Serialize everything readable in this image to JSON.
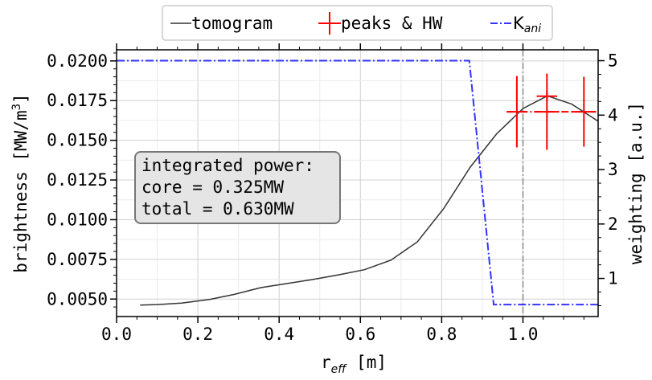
{
  "chart_data": {
    "type": "line",
    "xlabel": {
      "main": "r",
      "sub": "eff",
      "unit": "[m]"
    },
    "ylabel_left": {
      "main": "brightness [MW/m",
      "sup": "3",
      "end": "]"
    },
    "ylabel_right": "weighting [a.u.]",
    "xlim": [
      0.0,
      1.185
    ],
    "ylim_left": [
      0.0039,
      0.0207
    ],
    "ylim_right": [
      0.3,
      5.2
    ],
    "x_ticks": [
      "0.0",
      "0.2",
      "0.4",
      "0.6",
      "0.8",
      "1.0"
    ],
    "x_tick_values": [
      0.0,
      0.2,
      0.4,
      0.6,
      0.8,
      1.0
    ],
    "y_left_ticks": [
      "0.0050",
      "0.0075",
      "0.0100",
      "0.0125",
      "0.0150",
      "0.0175",
      "0.0200"
    ],
    "y_left_tick_values": [
      0.005,
      0.0075,
      0.01,
      0.0125,
      0.015,
      0.0175,
      0.02
    ],
    "y_right_ticks": [
      "1",
      "2",
      "3",
      "4",
      "5"
    ],
    "y_right_tick_values": [
      1,
      2,
      3,
      4,
      5
    ],
    "grid": true,
    "legend": {
      "placement": "top-center",
      "entries": [
        {
          "label": "tomogram",
          "style": "line",
          "color": "#333333"
        },
        {
          "label": "peaks & HW",
          "style": "errorbar",
          "color": "#ff0000"
        },
        {
          "label_main": "K",
          "label_sub": "ani",
          "style": "dashdot",
          "color": "#3333ff"
        }
      ]
    },
    "series": [
      {
        "name": "tomogram",
        "axis": "left",
        "color": "#333333",
        "x": [
          0.058,
          0.1,
          0.16,
          0.23,
          0.29,
          0.355,
          0.42,
          0.48,
          0.545,
          0.61,
          0.675,
          0.74,
          0.805,
          0.87,
          0.935,
          1.0,
          1.06,
          1.12,
          1.185
        ],
        "y": [
          0.00462,
          0.00465,
          0.00475,
          0.00498,
          0.0053,
          0.00572,
          0.00598,
          0.00622,
          0.00652,
          0.00685,
          0.00745,
          0.0086,
          0.0107,
          0.0133,
          0.0154,
          0.017,
          0.0178,
          0.01728,
          0.0162
        ]
      },
      {
        "name": "K_ani",
        "axis": "right",
        "color": "#3333ff",
        "x": [
          0.0,
          0.868,
          0.928,
          1.185
        ],
        "y": [
          5.0,
          5.0,
          0.52,
          0.52
        ]
      }
    ],
    "peaks": {
      "name": "peaks & HW",
      "color": "#ff0000",
      "points": [
        {
          "x": 0.985,
          "y": 0.0168,
          "xerr": 0.025,
          "yerr": 0.00225
        },
        {
          "x": 1.059,
          "y": 0.0168,
          "xerr": 0.03,
          "yerr": 0.0024
        },
        {
          "x": 1.15,
          "y": 0.0168,
          "xerr": 0.03,
          "yerr": 0.0022
        }
      ],
      "maximum": {
        "x": 1.059,
        "y": 0.01778,
        "xerr": 0.025,
        "yerr": 0.0022
      }
    },
    "vline": {
      "x": 1.0,
      "color": "#888888",
      "style": "dashdot"
    },
    "annotation": {
      "lines": [
        "integrated power:",
        "core = 0.325MW",
        "total = 0.630MW"
      ]
    }
  }
}
